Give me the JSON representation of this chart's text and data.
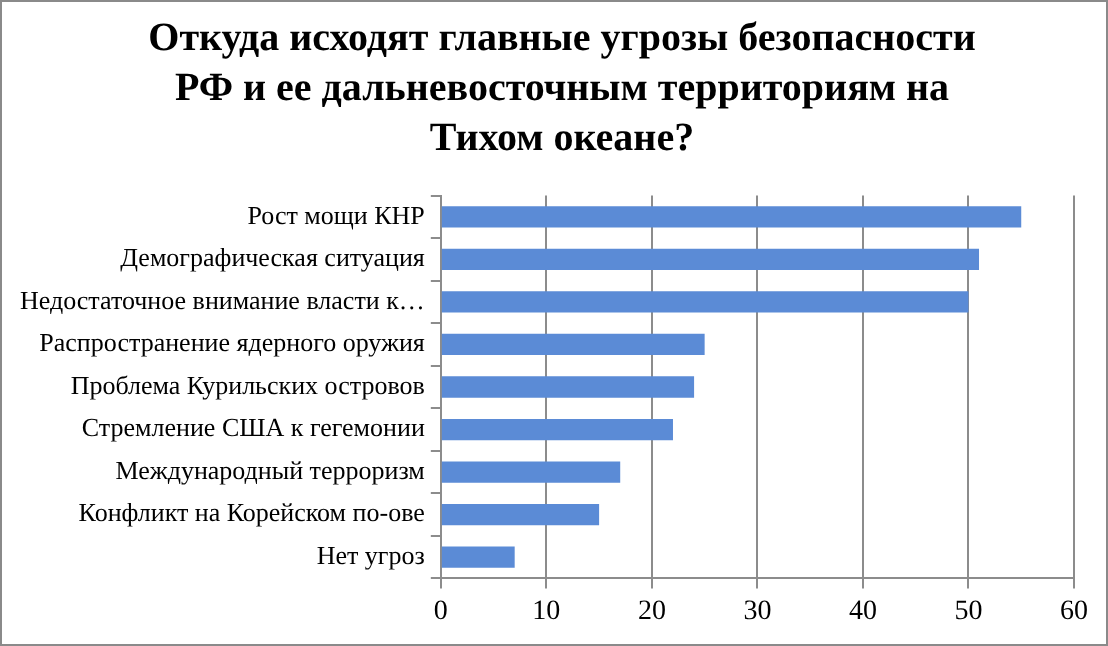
{
  "chart_data": {
    "type": "bar",
    "orientation": "horizontal",
    "title": "Откуда исходят главные угрозы безопасности РФ и ее дальневосточным территориям на Тихом океане?",
    "categories": [
      "Рост мощи КНР",
      "Демографическая ситуация",
      "Недостаточное внимание власти к…",
      "Распространение ядерного оружия",
      "Проблема Курильских островов",
      "Стремление США к гегемонии",
      "Международный терроризм",
      "Конфликт на Корейском по-ове",
      "Нет угроз"
    ],
    "values": [
      55,
      51,
      50,
      25,
      24,
      22,
      17,
      15,
      7
    ],
    "color": "#5b8bd6",
    "xlim": [
      0,
      60
    ],
    "xticks": [
      0,
      10,
      20,
      30,
      40,
      50,
      60
    ],
    "grid": "x"
  }
}
